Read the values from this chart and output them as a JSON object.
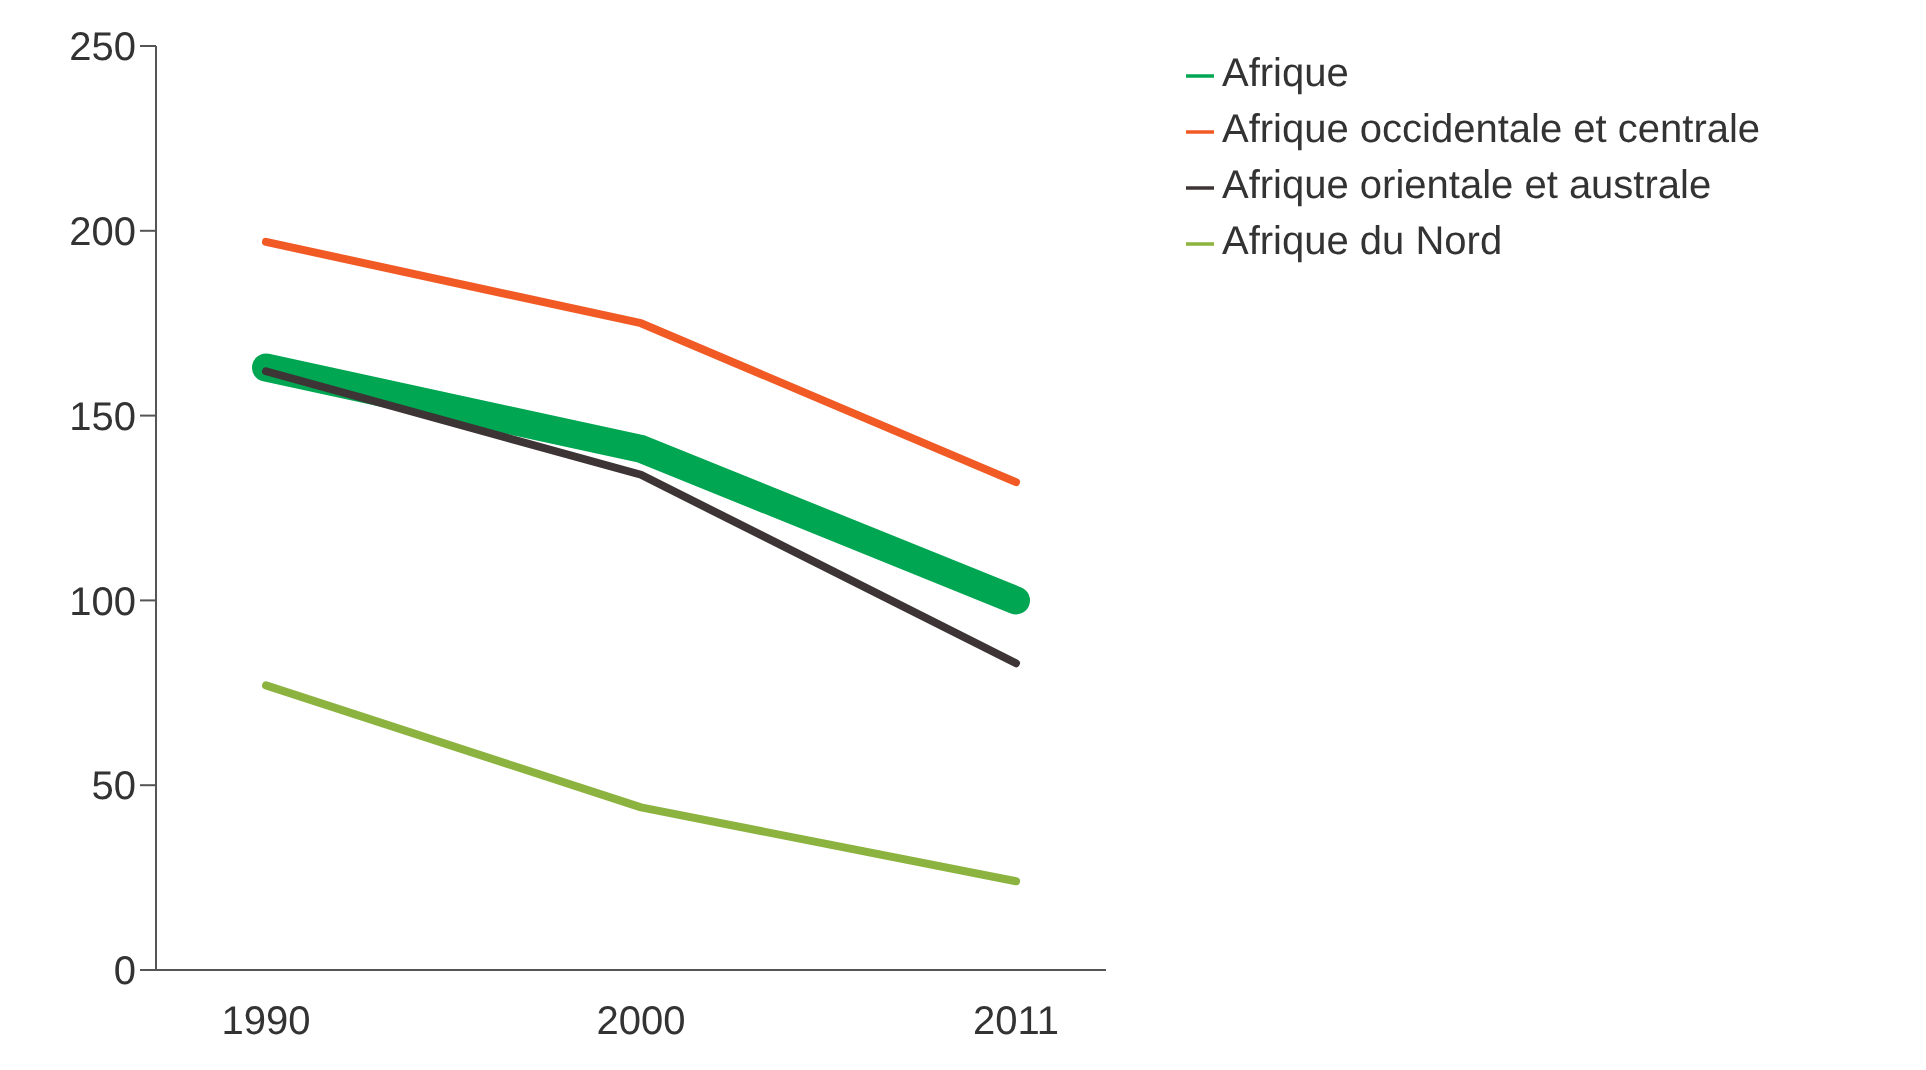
{
  "chart_data": {
    "type": "line",
    "categories": [
      "1990",
      "2000",
      "2011"
    ],
    "ylim": [
      0,
      250
    ],
    "yticks": [
      0,
      50,
      100,
      150,
      200,
      250
    ],
    "grid": false,
    "legend": "top right",
    "series": [
      {
        "name": "Afrique",
        "color": "#00a651",
        "values": [
          163,
          141,
          100
        ]
      },
      {
        "name": "Afrique occidentale et centrale",
        "color": "#f15a24",
        "values": [
          197,
          175,
          132
        ]
      },
      {
        "name": "Afrique orientale et australe",
        "color": "#3d3535",
        "values": [
          162,
          134,
          83
        ]
      },
      {
        "name": "Afrique du Nord",
        "color": "#8cb33f",
        "values": [
          77,
          44,
          24
        ]
      }
    ]
  }
}
